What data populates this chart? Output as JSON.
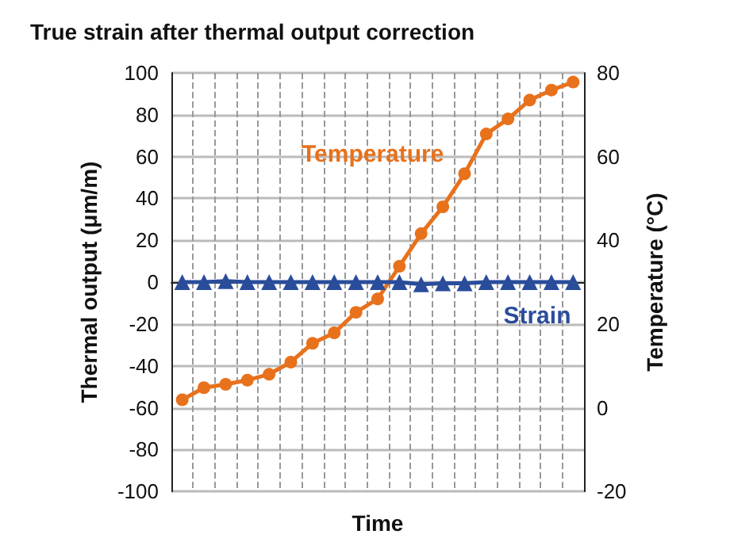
{
  "chart_data": {
    "type": "line",
    "title": "True strain after thermal output correction",
    "xlabel": "Time",
    "ylabel": "Thermal output (μm/m)",
    "y2label": "Temperature (°C)",
    "categories": [
      null,
      null,
      null,
      null,
      null,
      null,
      null,
      null,
      null,
      null,
      null,
      null,
      null,
      null,
      null,
      null,
      null,
      null,
      null
    ],
    "series": [
      {
        "name": "Temperature",
        "color": "#e8711c",
        "axis": "y2",
        "marker": "circle",
        "values": [
          1.9,
          4.8,
          5.6,
          6.6,
          8,
          10.9,
          15.4,
          17.9,
          22.8,
          26,
          33.8,
          41.6,
          48,
          55.9,
          65.4,
          69,
          73.5,
          75.9,
          77.8
        ]
      },
      {
        "name": "Strain",
        "color": "#2a4d9b",
        "axis": "y",
        "marker": "triangle",
        "values": [
          0,
          0,
          0.5,
          0,
          0,
          0,
          0,
          0,
          0,
          0,
          0,
          -1,
          -0.5,
          -0.5,
          0,
          0,
          0,
          0,
          0
        ]
      }
    ],
    "ylim": [
      -100,
      100
    ],
    "yticks": [
      -100,
      -80,
      -60,
      -40,
      -20,
      0,
      20,
      40,
      60,
      80,
      100
    ],
    "y2lim": [
      -20,
      80
    ],
    "y2ticks": [
      -20,
      0,
      20,
      40,
      60,
      80
    ],
    "grid": true,
    "legend": false,
    "line_style": "solid"
  }
}
